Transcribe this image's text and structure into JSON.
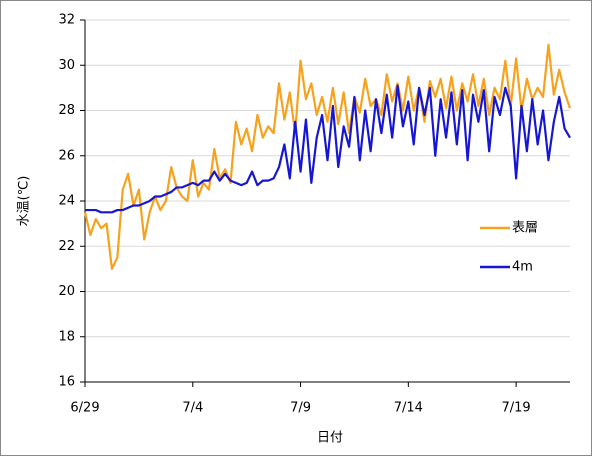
{
  "chart_data": {
    "type": "line",
    "x_label": "日付",
    "y_label": "水温(℃)",
    "categories": [
      "6/29",
      null,
      null,
      null,
      null,
      null,
      null,
      null,
      null,
      null,
      null,
      null,
      null,
      null,
      null,
      null,
      null,
      null,
      null,
      null,
      "7/4",
      null,
      null,
      null,
      null,
      null,
      null,
      null,
      null,
      null,
      null,
      null,
      null,
      null,
      null,
      null,
      null,
      null,
      null,
      null,
      "7/9",
      null,
      null,
      null,
      null,
      null,
      null,
      null,
      null,
      null,
      null,
      null,
      null,
      null,
      null,
      null,
      null,
      null,
      null,
      null,
      "7/14",
      null,
      null,
      null,
      null,
      null,
      null,
      null,
      null,
      null,
      null,
      null,
      null,
      null,
      null,
      null,
      null,
      null,
      null,
      null,
      "7/19",
      null,
      null,
      null,
      null,
      null,
      null,
      null,
      null,
      null,
      null
    ],
    "series": [
      {
        "name": "表層",
        "color": "#f5a21e",
        "values": [
          23.5,
          22.5,
          23.2,
          22.8,
          23.0,
          21.0,
          21.5,
          24.5,
          25.2,
          23.8,
          24.5,
          22.3,
          23.5,
          24.2,
          23.6,
          24.0,
          25.5,
          24.6,
          24.2,
          24.0,
          25.8,
          24.2,
          24.8,
          24.5,
          26.3,
          25.0,
          25.4,
          24.8,
          27.5,
          26.5,
          27.2,
          26.2,
          27.8,
          26.8,
          27.3,
          27.0,
          29.2,
          27.6,
          28.8,
          27.0,
          30.2,
          28.5,
          29.2,
          27.8,
          28.6,
          27.5,
          29.0,
          27.4,
          28.8,
          27.0,
          28.6,
          27.9,
          29.4,
          28.2,
          28.5,
          27.8,
          29.6,
          28.4,
          29.2,
          28.0,
          29.5,
          28.0,
          29.0,
          27.5,
          29.3,
          28.6,
          29.4,
          28.1,
          29.5,
          28.0,
          29.2,
          28.4,
          29.6,
          28.2,
          29.4,
          27.8,
          29.0,
          28.5,
          30.2,
          28.2,
          30.3,
          28.0,
          29.4,
          28.5,
          29.0,
          28.6,
          30.9,
          28.7,
          29.8,
          28.8,
          28.1
        ]
      },
      {
        "name": "4m",
        "color": "#1717d2",
        "values": [
          23.6,
          23.6,
          23.6,
          23.5,
          23.5,
          23.5,
          23.6,
          23.6,
          23.7,
          23.8,
          23.8,
          23.9,
          24.0,
          24.2,
          24.2,
          24.3,
          24.4,
          24.6,
          24.6,
          24.7,
          24.8,
          24.7,
          24.9,
          24.9,
          25.3,
          24.9,
          25.2,
          24.9,
          24.8,
          24.7,
          24.8,
          25.3,
          24.7,
          24.9,
          24.9,
          25.0,
          25.5,
          26.5,
          25.0,
          27.5,
          25.3,
          27.6,
          24.8,
          26.8,
          27.8,
          25.8,
          28.2,
          25.5,
          27.3,
          26.4,
          28.6,
          25.8,
          28.0,
          26.2,
          28.5,
          27.0,
          28.7,
          26.8,
          29.1,
          27.3,
          28.4,
          26.5,
          29.0,
          27.8,
          29.0,
          26.0,
          28.5,
          26.8,
          28.8,
          26.5,
          28.9,
          25.8,
          28.7,
          27.5,
          28.9,
          26.2,
          28.6,
          27.8,
          29.0,
          28.2,
          25.0,
          28.2,
          26.2,
          28.5,
          26.5,
          28.0,
          25.8,
          27.5,
          28.6,
          27.2,
          26.8
        ]
      }
    ],
    "ylim": [
      16,
      32
    ],
    "yticks": [
      16,
      18,
      20,
      22,
      24,
      26,
      28,
      30,
      32
    ],
    "grid": true
  }
}
